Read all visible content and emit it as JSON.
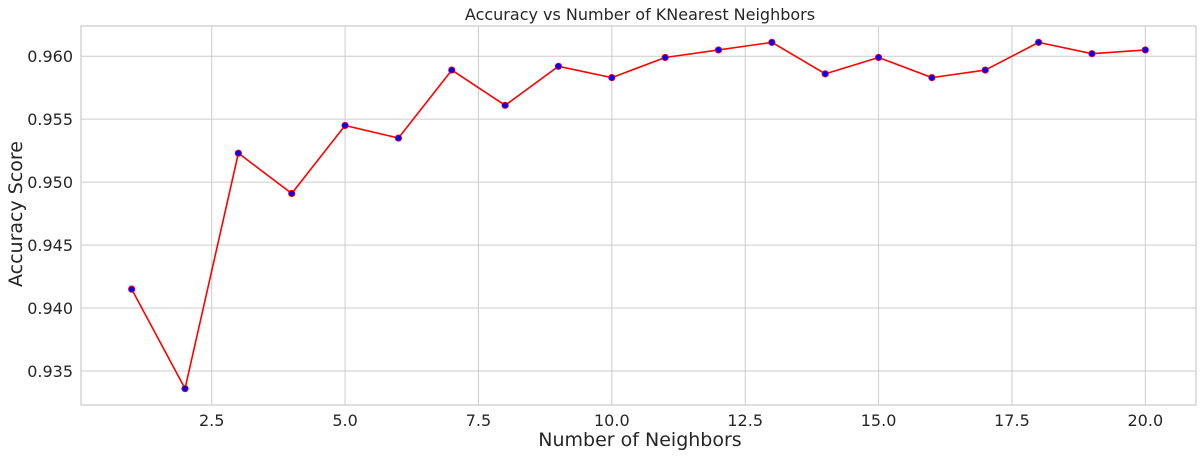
{
  "chart_data": {
    "type": "line",
    "title": "Accuracy vs Number of KNearest Neighbors",
    "xlabel": "Number of Neighbors",
    "ylabel": "Accuracy Score",
    "xlim": [
      0.05,
      20.95
    ],
    "ylim": [
      0.9323,
      0.9624
    ],
    "x_ticks": [
      2.5,
      5.0,
      7.5,
      10.0,
      12.5,
      15.0,
      17.5,
      20.0
    ],
    "x_tick_labels": [
      "2.5",
      "5.0",
      "7.5",
      "10.0",
      "12.5",
      "15.0",
      "17.5",
      "20.0"
    ],
    "y_ticks": [
      0.935,
      0.94,
      0.945,
      0.95,
      0.955,
      0.96
    ],
    "y_tick_labels": [
      "0.935",
      "0.940",
      "0.945",
      "0.950",
      "0.955",
      "0.960"
    ],
    "grid": true,
    "series": [
      {
        "line_color": "#ff0000",
        "marker_color": "#0000ff",
        "x": [
          1,
          2,
          3,
          4,
          5,
          6,
          7,
          8,
          9,
          10,
          11,
          12,
          13,
          14,
          15,
          16,
          17,
          18,
          19,
          20
        ],
        "y": [
          0.9415,
          0.9336,
          0.9523,
          0.9491,
          0.9545,
          0.9535,
          0.9589,
          0.9561,
          0.9592,
          0.9583,
          0.9599,
          0.9605,
          0.9611,
          0.9586,
          0.9599,
          0.9583,
          0.9589,
          0.9611,
          0.9602,
          0.9605
        ]
      }
    ]
  }
}
